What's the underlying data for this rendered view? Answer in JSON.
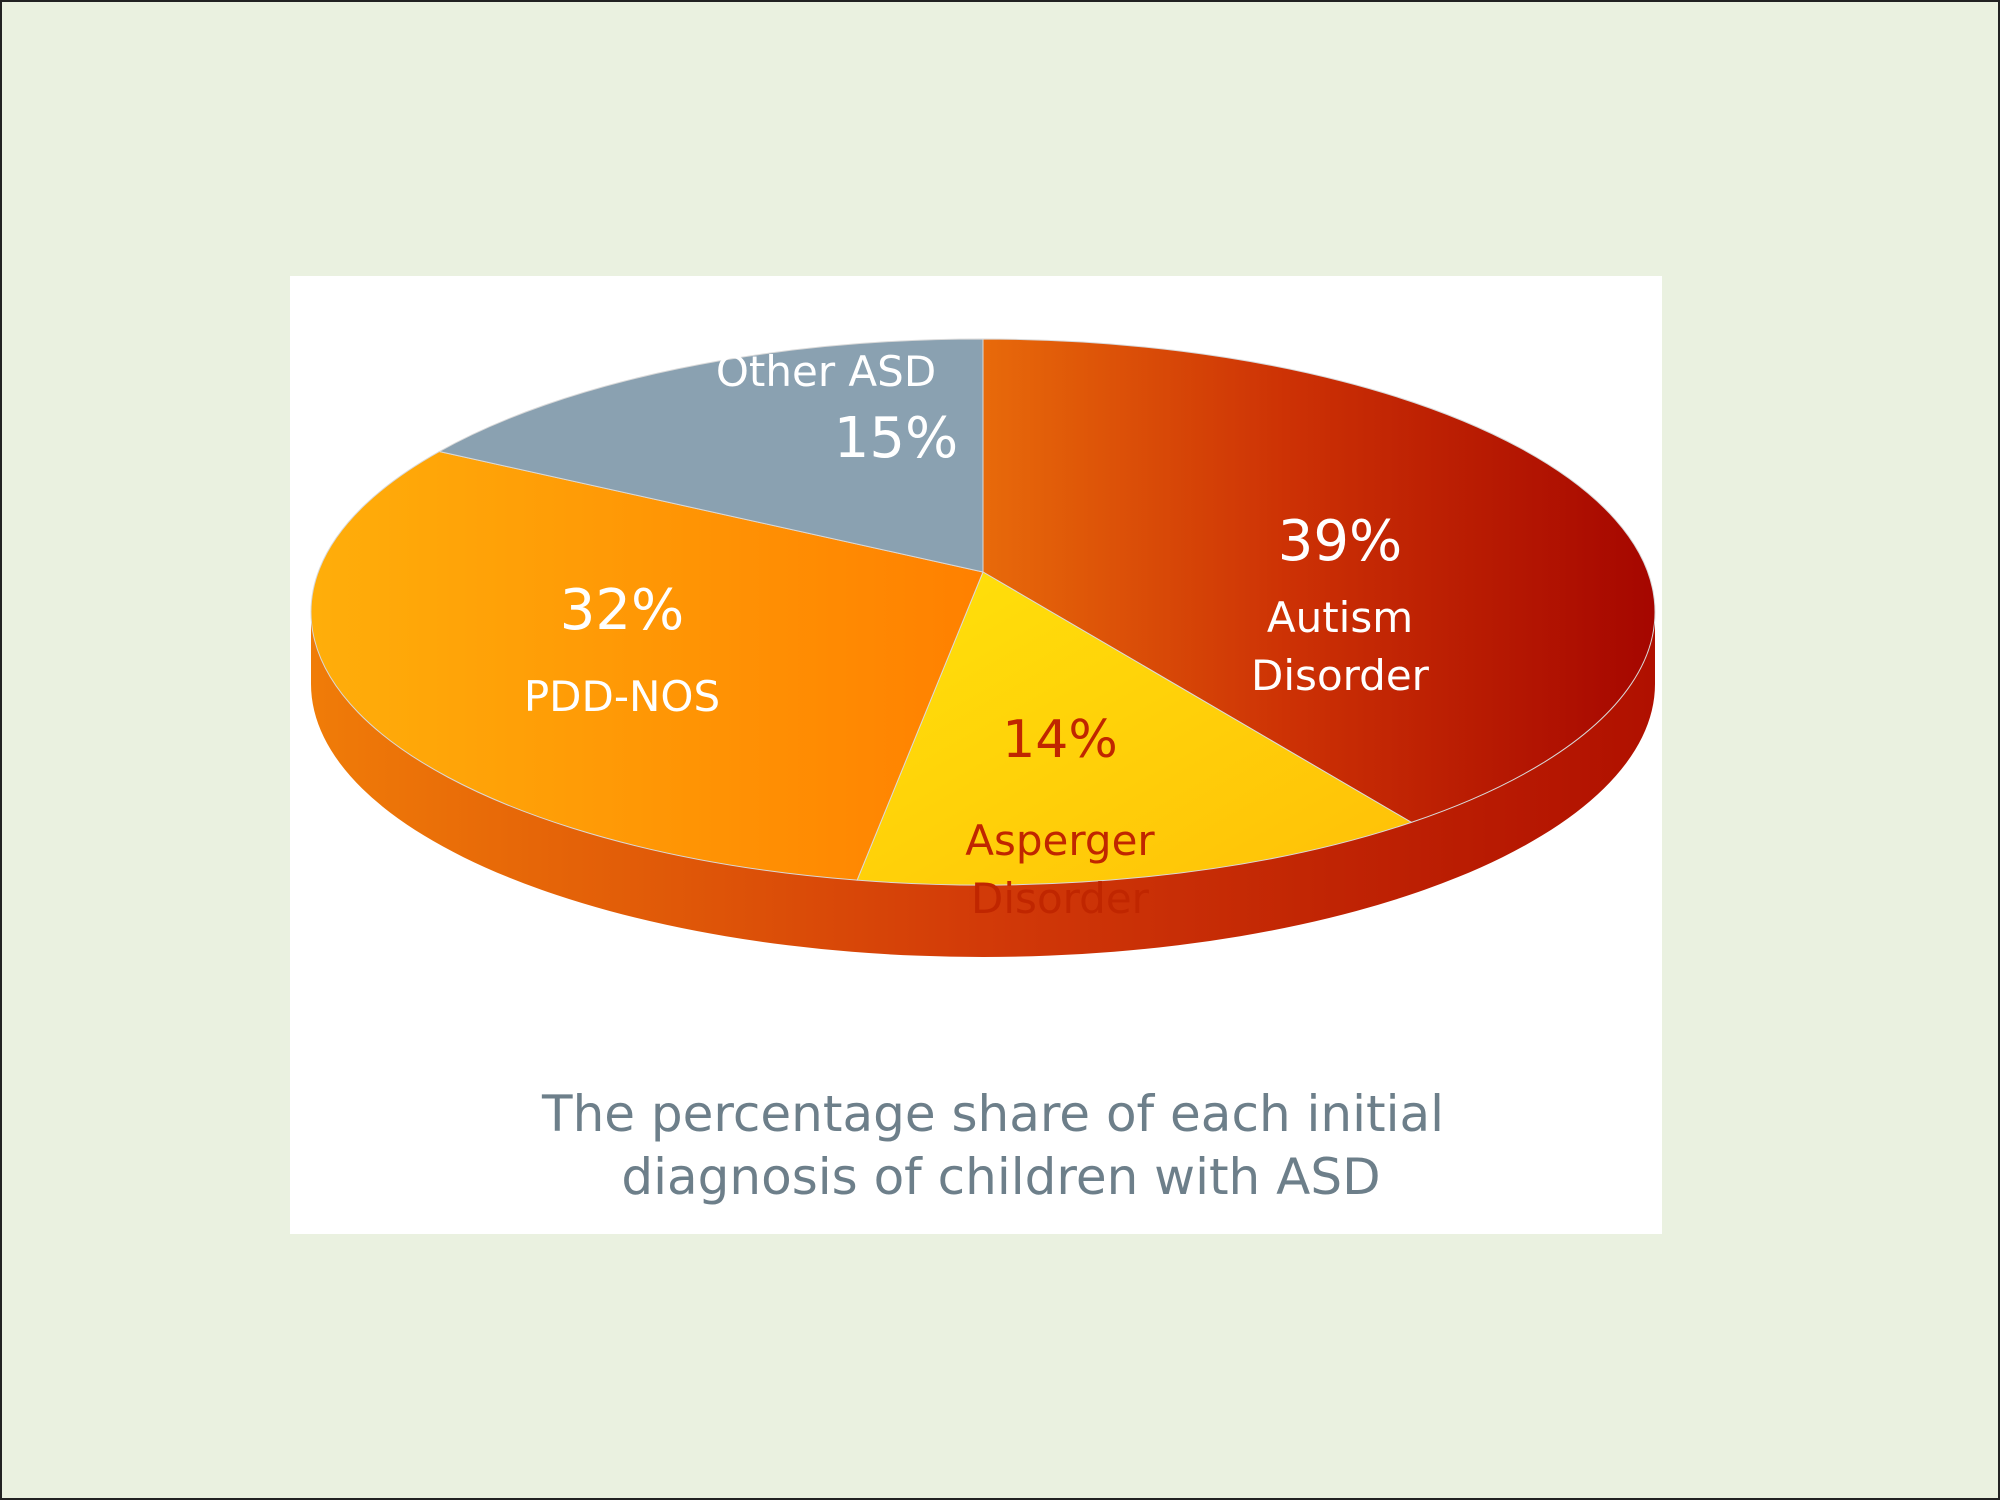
{
  "chart_data": {
    "type": "pie",
    "style": "3d",
    "categories": [
      "Autism Disorder",
      "Asperger Disorder",
      "PDD-NOS",
      "Other ASD"
    ],
    "values": [
      39,
      14,
      32,
      15
    ],
    "unit": "%",
    "labels": [
      {
        "value": "39%",
        "name_lines": [
          "Autism",
          "Disorder"
        ],
        "value_first": true
      },
      {
        "value": "14%",
        "name_lines": [
          "Asperger",
          "Disorder"
        ],
        "value_first": true
      },
      {
        "value": "32%",
        "name_lines": [
          "PDD-NOS"
        ],
        "value_first": true
      },
      {
        "value": "15%",
        "name_lines": [
          "Other ASD"
        ],
        "value_first": false
      }
    ],
    "caption_lines": [
      "The percentage share of each initial",
      "diagnosis of children with ASD"
    ],
    "legend": "none"
  },
  "colors": {
    "autism": "#c62a08",
    "autism_dark": "#a80a00",
    "asperger": "#ffd20a",
    "pdd_nos": "#ff8d06",
    "other_asd": "#8aa1b1",
    "side": "#d83d0c",
    "asperger_text": "#c02600",
    "label_text": "#ffffff",
    "caption_text": "#6d7f8a",
    "panel": "#ffffff",
    "page": "#eaf1e0"
  }
}
